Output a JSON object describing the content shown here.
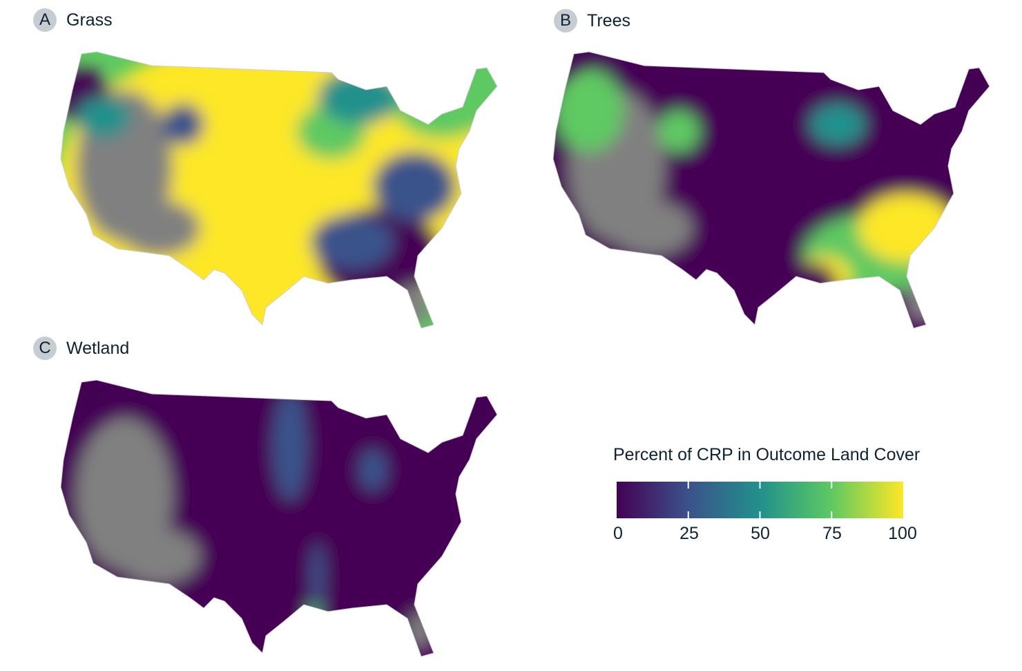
{
  "panels": [
    {
      "letter": "A",
      "title": "Grass"
    },
    {
      "letter": "B",
      "title": "Trees"
    },
    {
      "letter": "C",
      "title": "Wetland"
    }
  ],
  "legend": {
    "title": "Percent of CRP in Outcome Land Cover",
    "colormap": "viridis",
    "range": [
      0,
      100
    ],
    "ticks": [
      "0",
      "25",
      "50",
      "75",
      "100"
    ],
    "colors": [
      "#440154",
      "#3b528b",
      "#21918c",
      "#5ec962",
      "#fde725"
    ],
    "no_data_color": "#808080"
  },
  "chart_data": {
    "type": "heatmap",
    "maps": [
      "Grass",
      "Trees",
      "Wetland"
    ],
    "value_label": "Percent of CRP in Outcome Land Cover",
    "range": [
      0,
      100
    ]
  }
}
